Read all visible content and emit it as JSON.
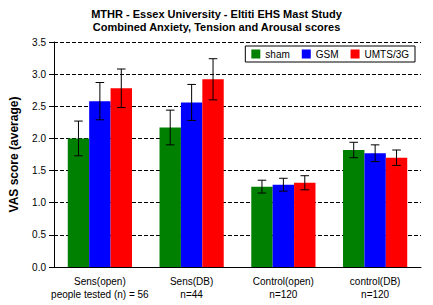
{
  "chart_data": {
    "type": "bar",
    "title": "MTHR - Essex University - Eltiti EHS Mast Study",
    "subtitle": "Combined Anxiety, Tension and Arousal scores",
    "y_label": "VAS score (average)",
    "categories": [
      "Sens(open)",
      "Sens(DB)",
      "Control(open)",
      "control(DB)"
    ],
    "category_notes": [
      "people tested (n) = 56",
      "n=44",
      "n=120",
      "n=120"
    ],
    "series": [
      {
        "name": "sham",
        "color": "#008000",
        "values": [
          2.0,
          2.17,
          1.25,
          1.82
        ],
        "errors": [
          0.27,
          0.27,
          0.1,
          0.12
        ]
      },
      {
        "name": "GSM",
        "color": "#0000ff",
        "values": [
          2.58,
          2.56,
          1.28,
          1.77
        ],
        "errors": [
          0.29,
          0.28,
          0.1,
          0.13
        ]
      },
      {
        "name": "UMTS/3G",
        "color": "#ff0000",
        "values": [
          2.78,
          2.92,
          1.31,
          1.7
        ],
        "errors": [
          0.3,
          0.32,
          0.11,
          0.12
        ]
      }
    ],
    "ylim": [
      0,
      3.5
    ],
    "yticks": [
      {
        "value": 0,
        "label": "0.0"
      },
      {
        "value": 0.5,
        "label": "0.5"
      },
      {
        "value": 1,
        "label": "1.0"
      },
      {
        "value": 1.5,
        "label": "1.5"
      },
      {
        "value": 2,
        "label": "2.0"
      },
      {
        "value": 2.5,
        "label": "2.5"
      },
      {
        "value": 3,
        "label": "3.0"
      },
      {
        "value": 3.5,
        "label": "3.5"
      }
    ],
    "grid": true,
    "legend": "top-right"
  }
}
